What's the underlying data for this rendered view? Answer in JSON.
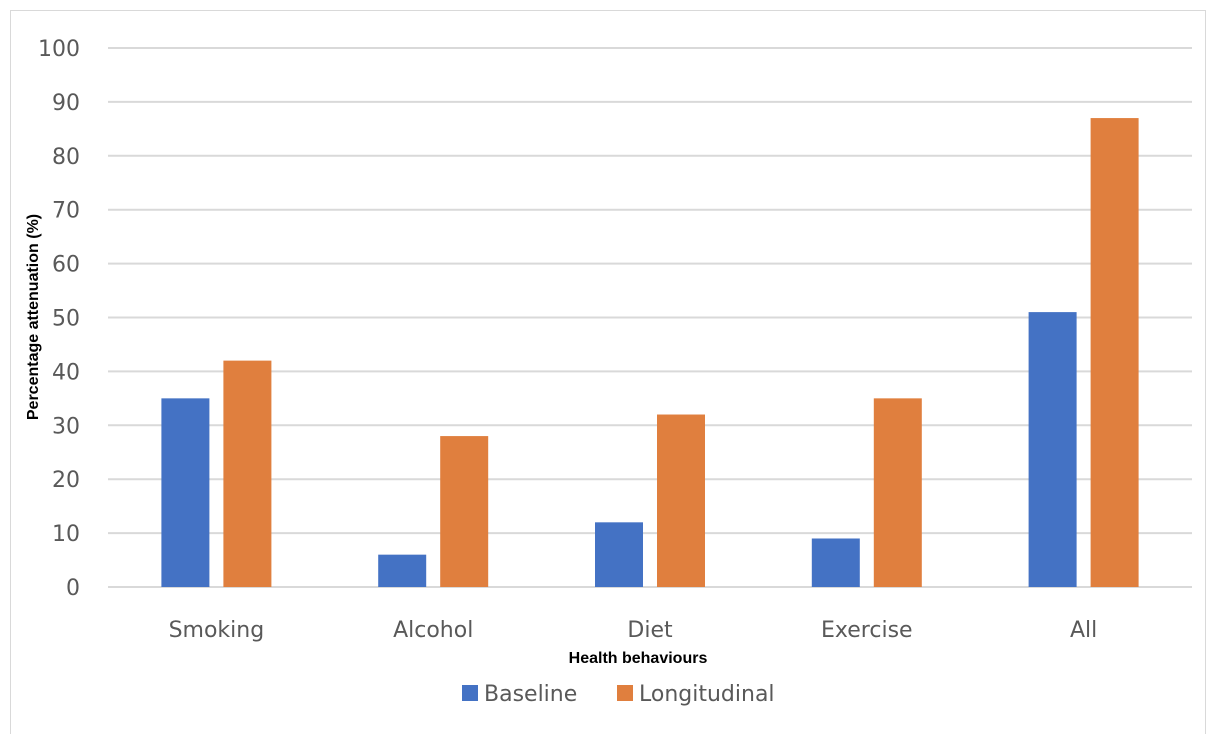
{
  "chart_data": {
    "type": "bar",
    "title": "",
    "xlabel": "Health behaviours",
    "ylabel": "Percentage attenuation (%)",
    "categories": [
      "Smoking",
      "Alcohol",
      "Diet",
      "Exercise",
      "All"
    ],
    "series": [
      {
        "name": "Baseline",
        "values": [
          35,
          6,
          12,
          9,
          51
        ],
        "color": "#4472C4"
      },
      {
        "name": "Longitudinal",
        "values": [
          42,
          28,
          32,
          35,
          87
        ],
        "color": "#E07F3E"
      }
    ],
    "ylim": [
      0,
      100
    ],
    "yticks": [
      0,
      10,
      20,
      30,
      40,
      50,
      60,
      70,
      80,
      90,
      100
    ],
    "grid": true,
    "legend": "bottom"
  }
}
